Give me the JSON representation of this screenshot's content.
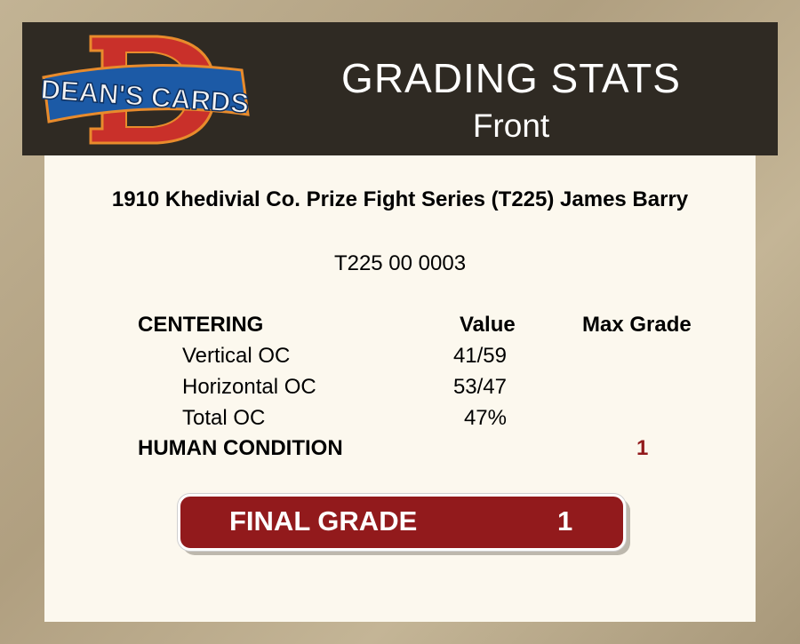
{
  "header": {
    "logo_text": "DEAN'S CARDS",
    "title": "GRADING STATS",
    "subtitle": "Front"
  },
  "card": {
    "name": "1910 Khedivial Co. Prize Fight Series (T225) James Barry",
    "cert": "T225 00 0003"
  },
  "table": {
    "section": "CENTERING",
    "col_value": "Value",
    "col_max": "Max Grade",
    "rows": [
      {
        "label": "Vertical OC",
        "value": "41/59"
      },
      {
        "label": "Horizontal OC",
        "value": "53/47"
      },
      {
        "label": "Total OC",
        "value": "47%"
      }
    ],
    "human_label": "HUMAN CONDITION",
    "human_grade": "1"
  },
  "final": {
    "label": "FINAL GRADE",
    "value": "1"
  },
  "colors": {
    "header_bg": "#2f2a23",
    "panel_bg": "#fcf8ee",
    "accent_red": "#921a1c"
  }
}
